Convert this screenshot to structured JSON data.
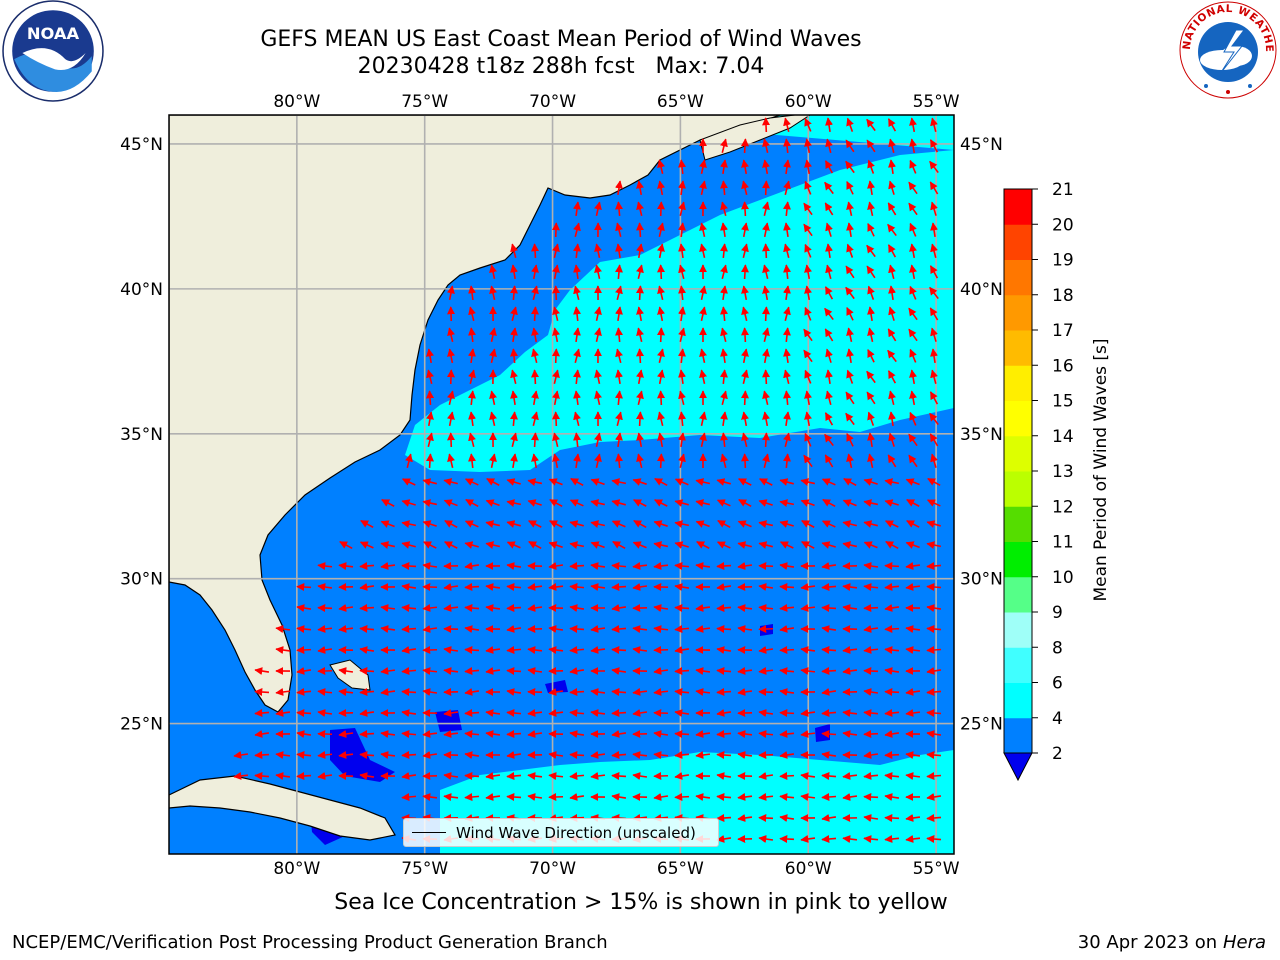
{
  "header": {
    "title_line1": "GEFS MEAN US East Coast Mean Period of Wind Waves",
    "title_line2": "20230428 t18z 288h fcst   Max: 7.04"
  },
  "logos": {
    "left_icon": "noaa-logo-icon",
    "left_text": "NOAA",
    "right_icon": "nws-logo-icon",
    "right_text": "NATIONAL WEATHER SERVICE"
  },
  "map": {
    "lon_labels": [
      "80°W",
      "75°W",
      "70°W",
      "65°W",
      "60°W",
      "55°W"
    ],
    "lon_values": [
      -80,
      -75,
      -70,
      -65,
      -60,
      -55
    ],
    "lat_labels": [
      "45°N",
      "40°N",
      "35°N",
      "30°N",
      "25°N"
    ],
    "lat_values": [
      45,
      40,
      35,
      30,
      25
    ],
    "lon_range": [
      -85,
      -54.3
    ],
    "lat_range": [
      20.5,
      46
    ],
    "land_color": "#efeedc",
    "ocean_low_color": "#0080ff",
    "ocean_mid_color": "#00ffff",
    "ocean_min_color": "#0000ee",
    "arrow_color": "#ff0000",
    "grid_color": "#b0b0b0"
  },
  "legend": {
    "label": "Wind Wave Direction (unscaled)"
  },
  "colorbar": {
    "title": "Mean Period of Wind Waves [s]",
    "ticks": [
      "2",
      "4",
      "6",
      "8",
      "9",
      "10",
      "11",
      "12",
      "13",
      "14",
      "15",
      "16",
      "17",
      "18",
      "19",
      "20",
      "21"
    ],
    "colors": [
      "#0080ff",
      "#00ffff",
      "#40ffff",
      "#9ffff8",
      "#55ff88",
      "#00ee00",
      "#55dd00",
      "#bbff00",
      "#ddff00",
      "#ffff00",
      "#ffee00",
      "#ffbb00",
      "#ff9900",
      "#ff7700",
      "#ff4400",
      "#ff0000"
    ],
    "extend_color": "#0000ee"
  },
  "caption": "Sea Ice Concentration > 15% is shown in pink to yellow",
  "footer": {
    "left": "NCEP/EMC/Verification Post Processing Product Generation Branch",
    "right_date": "30 Apr 2023 on ",
    "right_host": "Hera"
  }
}
